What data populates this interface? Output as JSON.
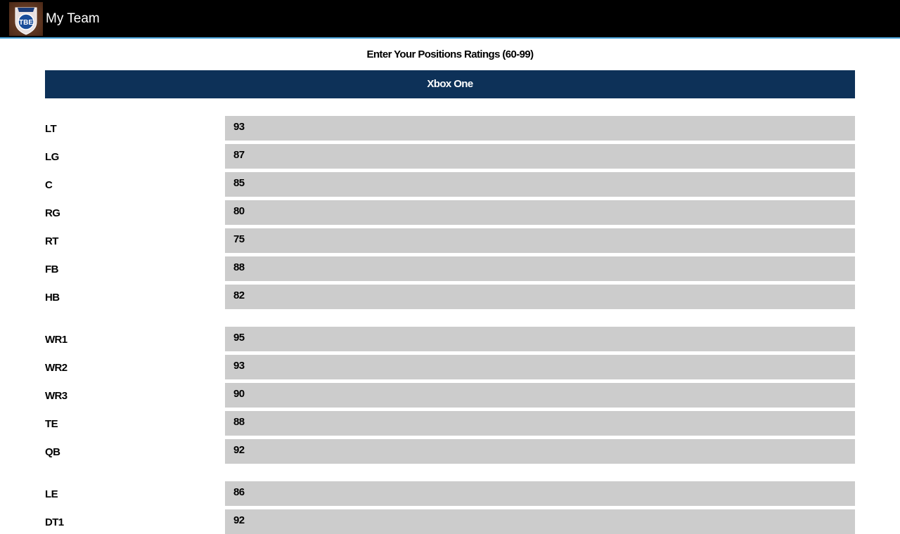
{
  "appbar": {
    "title": "My Team",
    "logo_text": "TBE"
  },
  "heading": "Enter Your Positions Ratings (60-99)",
  "platform": "Xbox One",
  "groups": [
    [
      {
        "pos": "LT",
        "value": "93"
      },
      {
        "pos": "LG",
        "value": "87"
      },
      {
        "pos": "C",
        "value": "85"
      },
      {
        "pos": "RG",
        "value": "80"
      },
      {
        "pos": "RT",
        "value": "75"
      },
      {
        "pos": "FB",
        "value": "88"
      },
      {
        "pos": "HB",
        "value": "82"
      }
    ],
    [
      {
        "pos": "WR1",
        "value": "95"
      },
      {
        "pos": "WR2",
        "value": "93"
      },
      {
        "pos": "WR3",
        "value": "90"
      },
      {
        "pos": "TE",
        "value": "88"
      },
      {
        "pos": "QB",
        "value": "92"
      }
    ],
    [
      {
        "pos": "LE",
        "value": "86"
      },
      {
        "pos": "DT1",
        "value": "92"
      }
    ]
  ],
  "colors": {
    "banner": "#0d3158",
    "input_bg": "#cccccc",
    "appbar": "#000000",
    "accent_line": "#4aa3d8"
  }
}
